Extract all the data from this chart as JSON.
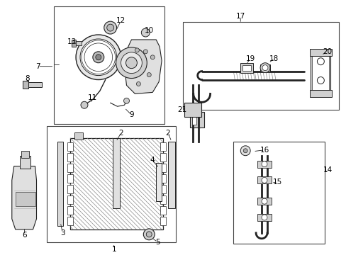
{
  "background_color": "#ffffff",
  "border_color": "#444444",
  "line_color": "#222222",
  "figsize": [
    4.89,
    3.6
  ],
  "dpi": 100
}
